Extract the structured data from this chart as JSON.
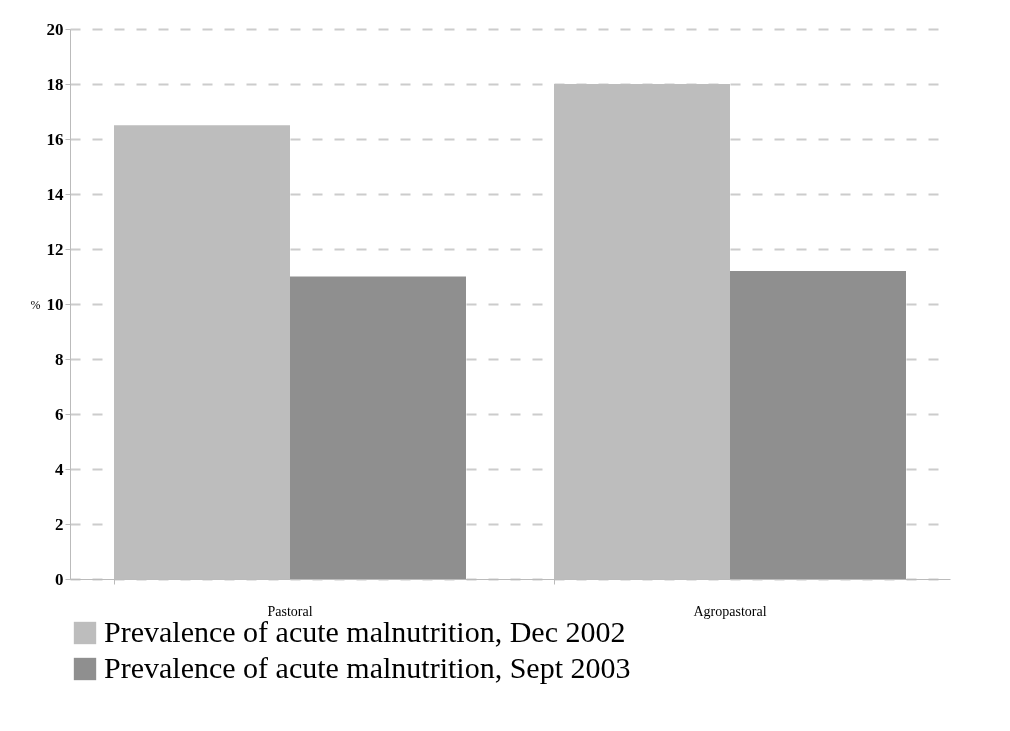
{
  "chart_data": {
    "type": "bar",
    "ylabel": "%",
    "categories": [
      "Pastoral",
      "Agropastoral"
    ],
    "series": [
      {
        "name": "Prevalence of acute malnutrition, Dec 2002",
        "color": "#bdbdbd",
        "values": [
          16.5,
          18.0
        ]
      },
      {
        "name": "Prevalence of acute malnutrition, Sept 2003",
        "color": "#8f8f8f",
        "values": [
          11.0,
          11.2
        ]
      }
    ],
    "ylim": [
      0,
      20
    ],
    "yticks": [
      0,
      2,
      4,
      6,
      8,
      10,
      12,
      14,
      16,
      18,
      20
    ],
    "grid": "y",
    "legend": "bottom"
  }
}
